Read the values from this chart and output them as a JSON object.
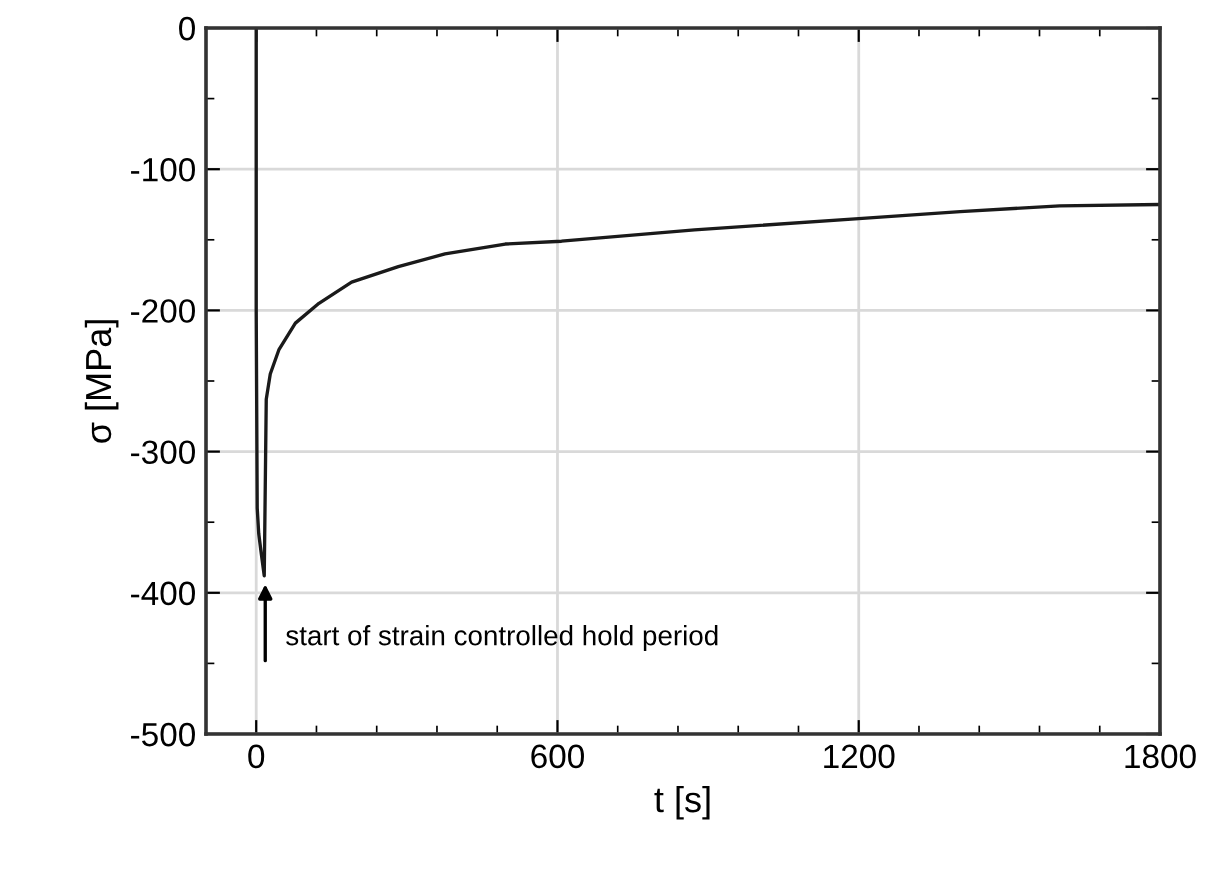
{
  "chart_data": {
    "type": "line",
    "xlabel": "t [s]",
    "ylabel": "σ [MPa]",
    "x": [
      0,
      0,
      2,
      5,
      10,
      16,
      20,
      28,
      45,
      78,
      125,
      190,
      283,
      376,
      496,
      608,
      873,
      1200,
      1402,
      1600,
      1800
    ],
    "series": [
      {
        "color": "#1a1a1a",
        "values": [
          0,
          -200,
          -340,
          -358,
          -372,
          -388,
          -263,
          -245,
          -228,
          -209,
          -195,
          -180,
          -169,
          -160,
          -153,
          -151,
          -143,
          -135,
          -130,
          -126,
          -125
        ]
      }
    ],
    "xlim": [
      -100,
      1800
    ],
    "xticks": [
      0,
      600,
      1200,
      1800
    ],
    "ylim": [
      -500,
      0
    ],
    "yticks": [
      -500,
      -400,
      -300,
      -200,
      -100,
      0
    ],
    "grid": true,
    "marker": "none",
    "line_style": "solid",
    "annotations": [
      {
        "text": "start of strain controlled hold period",
        "x": 18,
        "y": -390
      }
    ]
  }
}
